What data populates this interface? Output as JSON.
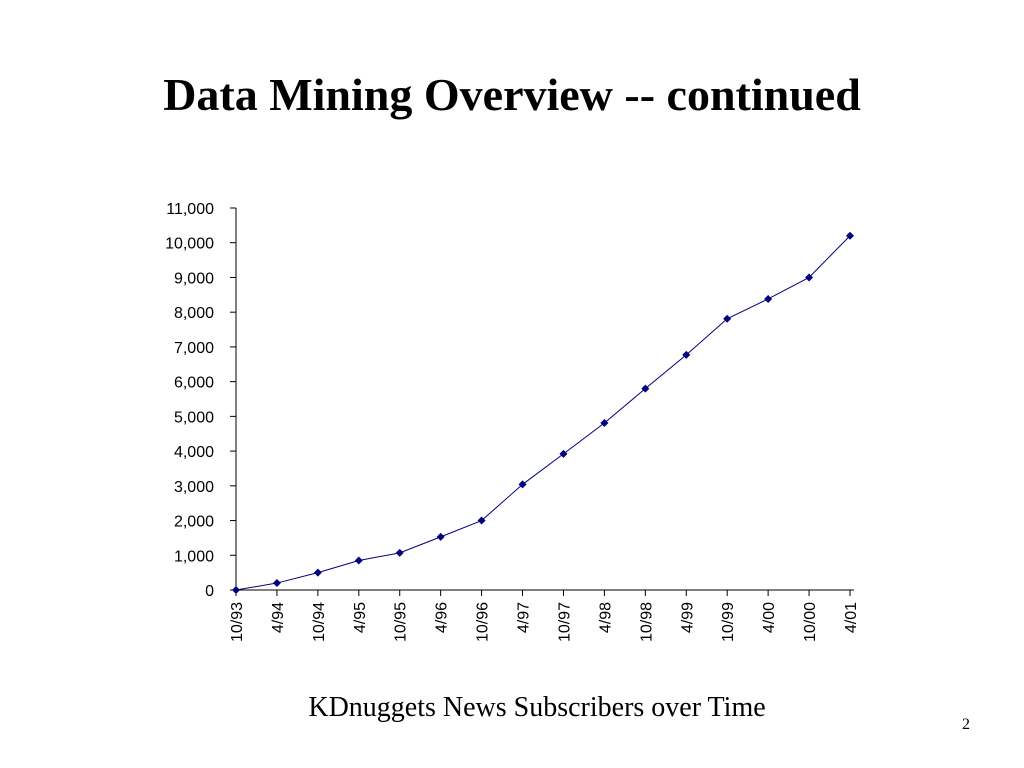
{
  "slide": {
    "title": "Data Mining Overview -- continued",
    "caption": "KDnuggets News Subscribers over Time",
    "page_number": "2"
  },
  "chart_data": {
    "type": "line",
    "title": "",
    "xlabel": "",
    "ylabel": "",
    "categories": [
      "10/93",
      "4/94",
      "10/94",
      "4/95",
      "10/95",
      "4/96",
      "10/96",
      "4/97",
      "10/97",
      "4/98",
      "10/98",
      "4/99",
      "10/99",
      "4/00",
      "10/00",
      "4/01"
    ],
    "series": [
      {
        "values": [
          0,
          200,
          500,
          850,
          1070,
          1530,
          2000,
          3040,
          3920,
          4810,
          5800,
          6770,
          7810,
          8380,
          9000,
          10200
        ],
        "color": "#000080",
        "marker": "diamond"
      }
    ],
    "ylim": [
      0,
      11000
    ],
    "yticks": [
      0,
      1000,
      2000,
      3000,
      4000,
      5000,
      6000,
      7000,
      8000,
      9000,
      10000,
      11000
    ],
    "ytick_labels": [
      "0",
      "1,000",
      "2,000",
      "3,000",
      "4,000",
      "5,000",
      "6,000",
      "7,000",
      "8,000",
      "9,000",
      "10,000",
      "11,000"
    ],
    "grid": false,
    "legend": "none"
  }
}
